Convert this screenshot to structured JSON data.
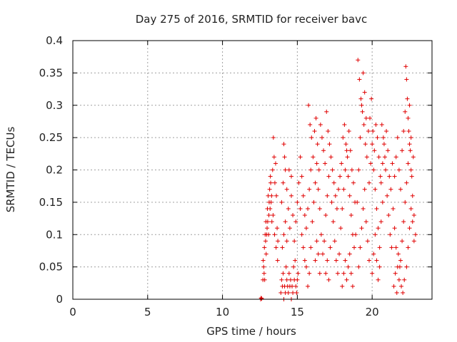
{
  "chart_data": {
    "type": "scatter",
    "title": "Day 275 of 2016, SRMTID for receiver bavc",
    "xlabel": "GPS time / hours",
    "ylabel": "SRMTID / TECUs",
    "xlim": [
      0,
      24
    ],
    "ylim": [
      0,
      0.4
    ],
    "x_ticks": [
      0,
      5,
      10,
      15,
      20
    ],
    "x_tick_labels": [
      "0",
      "5",
      "10",
      "15",
      "20"
    ],
    "y_ticks": [
      0,
      0.05,
      0.1,
      0.15,
      0.2,
      0.25,
      0.3,
      0.35,
      0.4
    ],
    "y_tick_labels": [
      "0",
      "0.05",
      "0.1",
      "0.15",
      "0.2",
      "0.25",
      "0.3",
      "0.35",
      "0.4"
    ],
    "grid": true,
    "marker": "+",
    "color": "#e00000",
    "series": [
      {
        "name": "SRMTID",
        "points": [
          [
            12.55,
            0.0
          ],
          [
            12.58,
            0.002
          ],
          [
            12.62,
            0.001
          ],
          [
            12.7,
            0.03
          ],
          [
            12.75,
            0.05
          ],
          [
            12.8,
            0.08
          ],
          [
            12.85,
            0.1
          ],
          [
            12.9,
            0.12
          ],
          [
            12.95,
            0.1
          ],
          [
            13.0,
            0.14
          ],
          [
            13.05,
            0.16
          ],
          [
            13.1,
            0.13
          ],
          [
            13.15,
            0.17
          ],
          [
            13.2,
            0.19
          ],
          [
            13.25,
            0.15
          ],
          [
            13.3,
            0.12
          ],
          [
            13.35,
            0.2
          ],
          [
            13.4,
            0.25
          ],
          [
            13.45,
            0.22
          ],
          [
            13.5,
            0.18
          ],
          [
            13.55,
            0.21
          ],
          [
            13.6,
            0.16
          ],
          [
            13.65,
            0.11
          ],
          [
            13.7,
            0.09
          ],
          [
            12.72,
            0.06
          ],
          [
            12.78,
            0.04
          ],
          [
            12.88,
            0.09
          ],
          [
            12.98,
            0.11
          ],
          [
            13.08,
            0.1
          ],
          [
            13.18,
            0.14
          ],
          [
            13.28,
            0.16
          ],
          [
            13.38,
            0.13
          ],
          [
            13.48,
            0.1
          ],
          [
            13.58,
            0.08
          ],
          [
            13.68,
            0.06
          ],
          [
            12.82,
            0.03
          ],
          [
            12.92,
            0.07
          ],
          [
            13.02,
            0.12
          ],
          [
            13.12,
            0.15
          ],
          [
            13.22,
            0.18
          ],
          [
            13.9,
            0.01
          ],
          [
            13.95,
            0.03
          ],
          [
            14.0,
            0.02
          ],
          [
            14.05,
            0.04
          ],
          [
            14.1,
            0.0
          ],
          [
            14.15,
            0.02
          ],
          [
            14.2,
            0.01
          ],
          [
            14.25,
            0.05
          ],
          [
            14.3,
            0.03
          ],
          [
            14.35,
            0.02
          ],
          [
            14.4,
            0.01
          ],
          [
            14.45,
            0.04
          ],
          [
            14.5,
            0.02
          ],
          [
            14.55,
            0.03
          ],
          [
            14.6,
            0.0
          ],
          [
            14.65,
            0.02
          ],
          [
            14.7,
            0.01
          ],
          [
            14.75,
            0.05
          ],
          [
            14.8,
            0.03
          ],
          [
            14.85,
            0.06
          ],
          [
            14.9,
            0.02
          ],
          [
            14.95,
            0.01
          ],
          [
            15.0,
            0.03
          ],
          [
            15.05,
            0.04
          ],
          [
            14.0,
            0.08
          ],
          [
            14.1,
            0.1
          ],
          [
            14.2,
            0.12
          ],
          [
            14.3,
            0.09
          ],
          [
            14.4,
            0.14
          ],
          [
            14.5,
            0.11
          ],
          [
            14.6,
            0.16
          ],
          [
            14.7,
            0.13
          ],
          [
            14.8,
            0.09
          ],
          [
            14.9,
            0.12
          ],
          [
            15.0,
            0.15
          ],
          [
            15.1,
            0.18
          ],
          [
            15.2,
            0.14
          ],
          [
            15.3,
            0.1
          ],
          [
            15.4,
            0.08
          ],
          [
            15.5,
            0.06
          ],
          [
            14.1,
            0.24
          ],
          [
            14.15,
            0.22
          ],
          [
            14.2,
            0.2
          ],
          [
            14.05,
            0.18
          ],
          [
            13.95,
            0.15
          ],
          [
            14.3,
            0.17
          ],
          [
            14.45,
            0.2
          ],
          [
            14.6,
            0.19
          ],
          [
            15.6,
            0.05
          ],
          [
            15.7,
            0.02
          ],
          [
            15.8,
            0.04
          ],
          [
            15.9,
            0.08
          ],
          [
            16.0,
            0.12
          ],
          [
            16.1,
            0.15
          ],
          [
            16.2,
            0.18
          ],
          [
            16.3,
            0.21
          ],
          [
            16.4,
            0.17
          ],
          [
            16.5,
            0.14
          ],
          [
            16.6,
            0.1
          ],
          [
            16.7,
            0.07
          ],
          [
            16.8,
            0.09
          ],
          [
            16.9,
            0.13
          ],
          [
            17.0,
            0.16
          ],
          [
            17.1,
            0.19
          ],
          [
            15.75,
            0.3
          ],
          [
            15.85,
            0.27
          ],
          [
            15.95,
            0.25
          ],
          [
            16.05,
            0.22
          ],
          [
            16.15,
            0.26
          ],
          [
            16.25,
            0.28
          ],
          [
            16.35,
            0.24
          ],
          [
            16.45,
            0.2
          ],
          [
            16.55,
            0.27
          ],
          [
            16.65,
            0.25
          ],
          [
            16.75,
            0.23
          ],
          [
            16.85,
            0.21
          ],
          [
            16.95,
            0.29
          ],
          [
            17.05,
            0.26
          ],
          [
            17.15,
            0.24
          ],
          [
            17.25,
            0.22
          ],
          [
            17.3,
            0.15
          ],
          [
            17.4,
            0.12
          ],
          [
            17.5,
            0.09
          ],
          [
            17.6,
            0.06
          ],
          [
            17.7,
            0.04
          ],
          [
            17.8,
            0.07
          ],
          [
            17.9,
            0.11
          ],
          [
            18.0,
            0.14
          ],
          [
            18.1,
            0.17
          ],
          [
            18.2,
            0.2
          ],
          [
            18.3,
            0.23
          ],
          [
            18.4,
            0.19
          ],
          [
            18.5,
            0.16
          ],
          [
            18.6,
            0.13
          ],
          [
            18.7,
            0.1
          ],
          [
            18.8,
            0.08
          ],
          [
            17.35,
            0.2
          ],
          [
            17.45,
            0.18
          ],
          [
            17.55,
            0.16
          ],
          [
            17.65,
            0.14
          ],
          [
            17.75,
            0.17
          ],
          [
            17.85,
            0.19
          ],
          [
            17.95,
            0.21
          ],
          [
            18.05,
            0.25
          ],
          [
            18.15,
            0.27
          ],
          [
            18.25,
            0.24
          ],
          [
            18.35,
            0.22
          ],
          [
            18.45,
            0.26
          ],
          [
            18.55,
            0.23
          ],
          [
            18.65,
            0.2
          ],
          [
            18.75,
            0.18
          ],
          [
            18.85,
            0.15
          ],
          [
            18.0,
            0.02
          ],
          [
            18.1,
            0.04
          ],
          [
            18.2,
            0.06
          ],
          [
            18.3,
            0.03
          ],
          [
            18.4,
            0.05
          ],
          [
            18.5,
            0.07
          ],
          [
            18.6,
            0.04
          ],
          [
            18.7,
            0.02
          ],
          [
            18.9,
            0.1
          ],
          [
            19.0,
            0.15
          ],
          [
            19.1,
            0.2
          ],
          [
            19.2,
            0.25
          ],
          [
            19.3,
            0.3
          ],
          [
            19.4,
            0.35
          ],
          [
            19.5,
            0.32
          ],
          [
            19.6,
            0.28
          ],
          [
            19.05,
            0.37
          ],
          [
            19.15,
            0.34
          ],
          [
            19.25,
            0.31
          ],
          [
            19.35,
            0.29
          ],
          [
            19.45,
            0.27
          ],
          [
            19.55,
            0.24
          ],
          [
            19.65,
            0.22
          ],
          [
            19.75,
            0.26
          ],
          [
            19.1,
            0.05
          ],
          [
            19.2,
            0.08
          ],
          [
            19.3,
            0.11
          ],
          [
            19.4,
            0.14
          ],
          [
            19.5,
            0.17
          ],
          [
            19.6,
            0.12
          ],
          [
            19.7,
            0.09
          ],
          [
            19.8,
            0.06
          ],
          [
            19.8,
            0.18
          ],
          [
            19.9,
            0.21
          ],
          [
            20.0,
            0.24
          ],
          [
            20.1,
            0.2
          ],
          [
            20.2,
            0.17
          ],
          [
            20.3,
            0.14
          ],
          [
            20.4,
            0.11
          ],
          [
            20.5,
            0.08
          ],
          [
            19.85,
            0.28
          ],
          [
            19.95,
            0.31
          ],
          [
            20.05,
            0.26
          ],
          [
            20.15,
            0.23
          ],
          [
            20.25,
            0.27
          ],
          [
            20.35,
            0.25
          ],
          [
            20.45,
            0.22
          ],
          [
            20.55,
            0.19
          ],
          [
            20.0,
            0.04
          ],
          [
            20.1,
            0.07
          ],
          [
            20.2,
            0.1
          ],
          [
            20.3,
            0.06
          ],
          [
            20.4,
            0.03
          ],
          [
            20.5,
            0.05
          ],
          [
            20.6,
            0.12
          ],
          [
            20.7,
            0.15
          ],
          [
            20.6,
            0.18
          ],
          [
            20.7,
            0.21
          ],
          [
            20.8,
            0.24
          ],
          [
            20.9,
            0.2
          ],
          [
            21.0,
            0.16
          ],
          [
            21.1,
            0.13
          ],
          [
            21.2,
            0.1
          ],
          [
            21.3,
            0.08
          ],
          [
            20.65,
            0.27
          ],
          [
            20.75,
            0.25
          ],
          [
            20.85,
            0.22
          ],
          [
            20.95,
            0.26
          ],
          [
            21.05,
            0.23
          ],
          [
            21.15,
            0.19
          ],
          [
            21.25,
            0.17
          ],
          [
            21.35,
            0.21
          ],
          [
            21.4,
            0.14
          ],
          [
            21.5,
            0.11
          ],
          [
            21.6,
            0.08
          ],
          [
            21.7,
            0.05
          ],
          [
            21.8,
            0.03
          ],
          [
            21.9,
            0.06
          ],
          [
            22.0,
            0.09
          ],
          [
            22.1,
            0.12
          ],
          [
            21.45,
            0.02
          ],
          [
            21.55,
            0.04
          ],
          [
            21.65,
            0.01
          ],
          [
            21.75,
            0.07
          ],
          [
            21.85,
            0.05
          ],
          [
            21.95,
            0.02
          ],
          [
            22.05,
            0.01
          ],
          [
            22.15,
            0.03
          ],
          [
            21.5,
            0.19
          ],
          [
            21.6,
            0.22
          ],
          [
            21.7,
            0.25
          ],
          [
            21.8,
            0.2
          ],
          [
            21.9,
            0.17
          ],
          [
            22.0,
            0.23
          ],
          [
            22.1,
            0.26
          ],
          [
            22.2,
            0.29
          ],
          [
            22.2,
            0.15
          ],
          [
            22.3,
            0.18
          ],
          [
            22.4,
            0.21
          ],
          [
            22.5,
            0.24
          ],
          [
            22.6,
            0.2
          ],
          [
            22.7,
            0.16
          ],
          [
            22.8,
            0.13
          ],
          [
            22.9,
            0.1
          ],
          [
            22.25,
            0.36
          ],
          [
            22.3,
            0.34
          ],
          [
            22.35,
            0.31
          ],
          [
            22.4,
            0.28
          ],
          [
            22.45,
            0.26
          ],
          [
            22.5,
            0.3
          ],
          [
            22.55,
            0.23
          ],
          [
            22.6,
            0.25
          ],
          [
            22.3,
            0.05
          ],
          [
            22.4,
            0.08
          ],
          [
            22.5,
            0.11
          ],
          [
            22.6,
            0.14
          ],
          [
            22.7,
            0.12
          ],
          [
            22.8,
            0.09
          ],
          [
            22.65,
            0.19
          ],
          [
            22.75,
            0.22
          ],
          [
            15.2,
            0.22
          ],
          [
            15.3,
            0.19
          ],
          [
            15.4,
            0.16
          ],
          [
            15.5,
            0.13
          ],
          [
            15.6,
            0.11
          ],
          [
            15.7,
            0.14
          ],
          [
            15.8,
            0.17
          ],
          [
            15.9,
            0.2
          ],
          [
            16.9,
            0.04
          ],
          [
            17.0,
            0.06
          ],
          [
            17.1,
            0.03
          ],
          [
            17.2,
            0.08
          ],
          [
            16.2,
            0.06
          ],
          [
            16.3,
            0.09
          ],
          [
            16.4,
            0.07
          ],
          [
            16.5,
            0.04
          ]
        ]
      }
    ]
  }
}
